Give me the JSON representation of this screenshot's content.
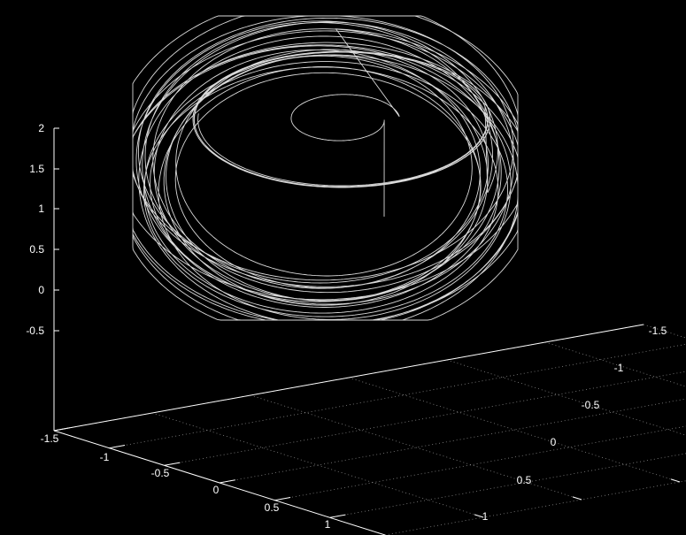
{
  "chart_data": {
    "type": "line",
    "subtype": "3d-parametric-attractor",
    "title": "",
    "background": "#000000",
    "line_color": "#ffffff",
    "grid": true,
    "grid_style": "dotted",
    "axes": {
      "x": {
        "label": "",
        "range": [
          -1.5,
          1.5
        ],
        "ticks": [
          {
            "value": -1.5,
            "label": "-1.5"
          },
          {
            "value": -1,
            "label": "-1"
          },
          {
            "value": -0.5,
            "label": "-0.5"
          },
          {
            "value": 0,
            "label": "0"
          },
          {
            "value": 0.5,
            "label": "0.5"
          },
          {
            "value": 1,
            "label": "1"
          }
        ]
      },
      "y": {
        "label": "",
        "range": [
          1.5,
          -1.5
        ],
        "ticks": [
          {
            "value": 1,
            "label": "1"
          },
          {
            "value": 0.5,
            "label": "0.5"
          },
          {
            "value": 0,
            "label": "0"
          },
          {
            "value": -0.5,
            "label": "-0.5"
          },
          {
            "value": -1,
            "label": "-1"
          },
          {
            "value": -1.5,
            "label": "-1.5"
          }
        ]
      },
      "z": {
        "label": "",
        "range": [
          -0.5,
          2
        ],
        "ticks": [
          {
            "value": 2,
            "label": "2"
          },
          {
            "value": 1.5,
            "label": "1.5"
          },
          {
            "value": 1,
            "label": "1"
          },
          {
            "value": 0.5,
            "label": "0.5"
          },
          {
            "value": 0,
            "label": "0"
          },
          {
            "value": -0.5,
            "label": "-0.5"
          }
        ]
      }
    },
    "series": [
      {
        "style": "line",
        "description_shape": "toroidal double-scroll trajectory",
        "extent": {
          "x": [
            -1.2,
            1.2
          ],
          "y": [
            -1.2,
            1.2
          ],
          "z": [
            0,
            2
          ]
        }
      }
    ]
  }
}
